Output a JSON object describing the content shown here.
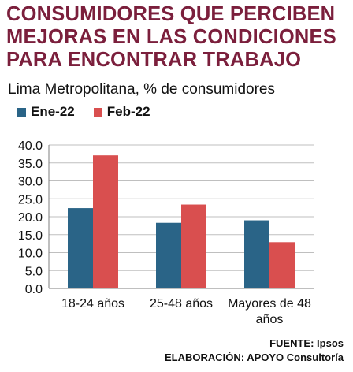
{
  "title_lines": [
    "CONSUMIDORES QUE PERCIBEN",
    "MEJORAS EN LAS CONDICIONES",
    "PARA ENCONTRAR TRABAJO"
  ],
  "subtitle": "Lima Metropolitana, % de consumidores",
  "source": "FUENTE: Ipsos",
  "elaboration": "ELABORACIÓN: APOYO Consultoría",
  "colors": {
    "title": "#7b1f3c",
    "series1": "#2a6487",
    "series2": "#d94f4f",
    "grid": "#bfbfbf"
  },
  "chart_data": {
    "type": "bar",
    "categories": [
      "18-24 años",
      "25-48 años",
      "Mayores de 48 años"
    ],
    "category_lines": [
      [
        "18-24 años"
      ],
      [
        "25-48 años"
      ],
      [
        "Mayores de 48",
        "años"
      ]
    ],
    "series": [
      {
        "name": "Ene-22",
        "values": [
          22.4,
          18.3,
          19.0
        ]
      },
      {
        "name": "Feb-22",
        "values": [
          37.1,
          23.4,
          12.9
        ]
      }
    ],
    "yticks": [
      "0.0",
      "5.0",
      "10.0",
      "15.0",
      "20.0",
      "25.0",
      "30.0",
      "35.0",
      "40.0"
    ],
    "ylim": [
      0,
      40
    ],
    "grid": true,
    "legend": "top-left"
  }
}
